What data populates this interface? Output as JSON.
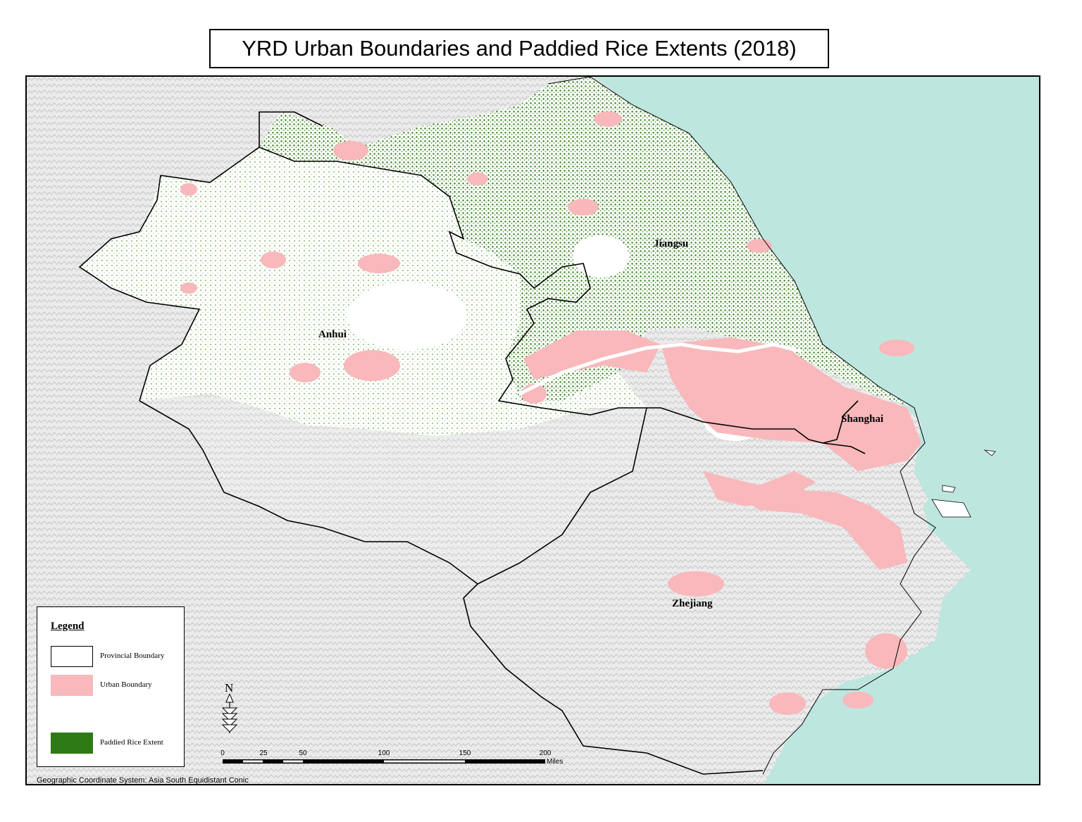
{
  "title": "YRD Urban Boundaries and Paddied Rice Extents (2018)",
  "provinces": {
    "anhui": "Anhui",
    "jiangsu": "Jiangsu",
    "shanghai": "Shanghai",
    "zhejiang": "Zhejiang"
  },
  "legend": {
    "title": "Legend",
    "items": [
      {
        "label": "Provincial Boundary",
        "fill": "#ffffff",
        "stroke": "#000000"
      },
      {
        "label": "Urban Boundary",
        "fill": "#f9b8bb"
      },
      {
        "label": "Paddied Rice Extent",
        "fill": "#2d7a14"
      }
    ]
  },
  "north_arrow": {
    "label": "N",
    "icon": "north-arrow-icon"
  },
  "scale_bar": {
    "ticks": [
      "0",
      "25",
      "50",
      "100",
      "150",
      "200"
    ],
    "unit": "Miles"
  },
  "coordinate_system": "Geographic Coordinate System: Asia South Equidistant Conic",
  "colors": {
    "sea": "#bde6df",
    "rice": "#2d7a14",
    "urban": "#f9b8bb",
    "terrain": "#dcdcdc",
    "land": "#ffffff"
  }
}
